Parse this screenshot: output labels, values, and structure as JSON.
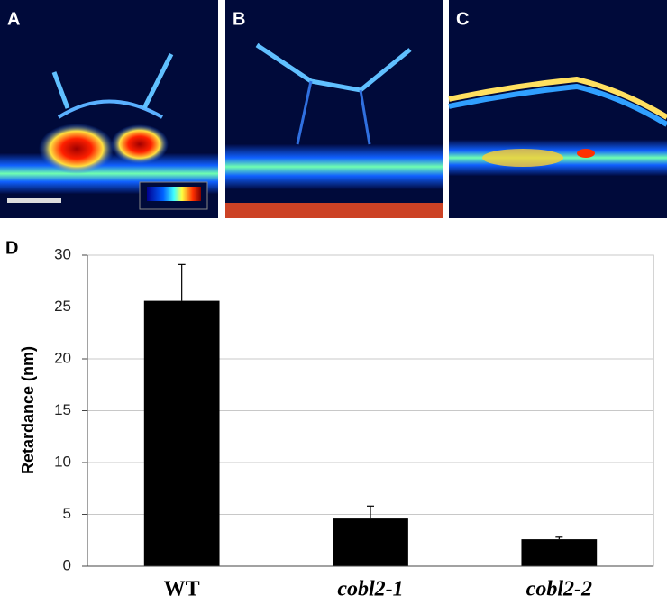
{
  "panels": [
    "A",
    "B",
    "C"
  ],
  "chart_data": {
    "type": "bar",
    "panel_label": "D",
    "ylabel": "Retardance (nm)",
    "categories": [
      "WT",
      "cobl2-1",
      "cobl2-2"
    ],
    "values": [
      25.6,
      4.6,
      2.6
    ],
    "errors": [
      3.5,
      1.2,
      0.2
    ],
    "color": "#000000",
    "ylim": [
      0,
      30
    ],
    "yticks": [
      0,
      5,
      10,
      15,
      20,
      25,
      30
    ],
    "grid": true
  }
}
